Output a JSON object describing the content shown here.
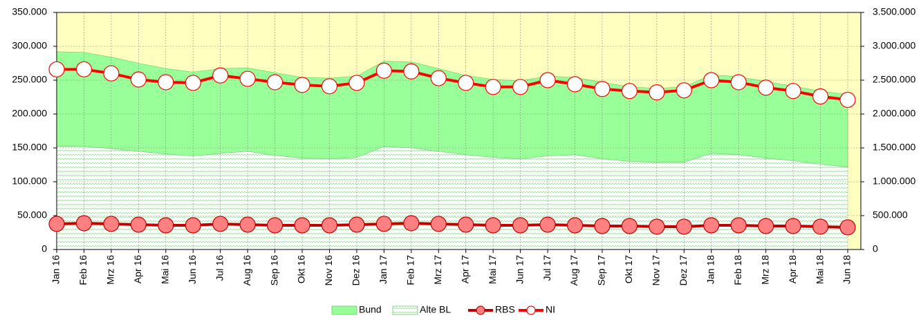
{
  "chart_data": {
    "type": "combo",
    "categories": [
      "Jan 16",
      "Feb 16",
      "Mrz 16",
      "Apr 16",
      "Mai 16",
      "Jun 16",
      "Jul 16",
      "Aug 16",
      "Sep 16",
      "Okt 16",
      "Nov 16",
      "Dez 16",
      "Jan 17",
      "Feb 17",
      "Mrz 17",
      "Apr 17",
      "Mai 17",
      "Jun 17",
      "Jul 17",
      "Aug 17",
      "Sep 17",
      "Okt 17",
      "Nov 17",
      "Dez 17",
      "Jan 18",
      "Feb 18",
      "Mrz 18",
      "Apr 18",
      "Mai 18",
      "Jun 18"
    ],
    "series": [
      {
        "name": "Bund",
        "type": "area",
        "color": "#99ff99",
        "values": [
          139000,
          139000,
          135000,
          130000,
          126000,
          124000,
          125000,
          123000,
          122000,
          119000,
          119000,
          120000,
          126000,
          127000,
          122000,
          117000,
          115000,
          115000,
          118000,
          114000,
          113000,
          110000,
          109000,
          111000,
          116000,
          115000,
          113000,
          110000,
          108000,
          107000
        ]
      },
      {
        "name": "Alte BL",
        "type": "area",
        "color": "#ccffcc",
        "values": [
          153000,
          152000,
          149000,
          145000,
          141000,
          138000,
          142000,
          145000,
          139000,
          135000,
          134000,
          136000,
          152000,
          150000,
          145000,
          140000,
          136000,
          134000,
          138000,
          140000,
          134000,
          130000,
          129000,
          129000,
          142000,
          140000,
          135000,
          131000,
          126000,
          122000
        ]
      },
      {
        "name": "RBS",
        "type": "line",
        "axis": "y2",
        "color": "#c00000",
        "marker_color": "#ff8080",
        "values": [
          378000,
          388000,
          378000,
          367000,
          357000,
          357000,
          378000,
          367000,
          357000,
          357000,
          357000,
          367000,
          378000,
          388000,
          378000,
          367000,
          357000,
          357000,
          367000,
          357000,
          347000,
          347000,
          337000,
          337000,
          357000,
          357000,
          347000,
          347000,
          337000,
          327000
        ]
      },
      {
        "name": "NI",
        "type": "line",
        "axis": "y2",
        "color": "#ff0000",
        "marker_color": "#ffffff",
        "values": [
          2660000,
          2660000,
          2600000,
          2510000,
          2470000,
          2460000,
          2570000,
          2520000,
          2470000,
          2430000,
          2410000,
          2460000,
          2640000,
          2630000,
          2530000,
          2460000,
          2400000,
          2400000,
          2500000,
          2440000,
          2370000,
          2340000,
          2320000,
          2350000,
          2500000,
          2470000,
          2390000,
          2340000,
          2260000,
          2210000
        ]
      }
    ],
    "ylim": [
      0,
      350000
    ],
    "yticks": [
      0,
      {
        "value": 50000,
        "label": "50.000"
      },
      {
        "value": 100000,
        "label": "100.000"
      },
      {
        "value": 150000,
        "label": "150.000"
      },
      {
        "value": 200000,
        "label": "200.000"
      },
      {
        "value": 250000,
        "label": "250.000"
      },
      {
        "value": 300000,
        "label": "300.000"
      },
      {
        "value": 350000,
        "label": "350.000"
      }
    ],
    "y2lim": [
      0,
      3500000
    ],
    "y2ticks": [
      0,
      {
        "value": 500000,
        "label": "500.000"
      },
      {
        "value": 1000000,
        "label": "1.000.000"
      },
      {
        "value": 1500000,
        "label": "1.500.000"
      },
      {
        "value": 2000000,
        "label": "2.000.000"
      },
      {
        "value": 2500000,
        "label": "2.500.000"
      },
      {
        "value": 3000000,
        "label": "3.000.000"
      },
      {
        "value": 3500000,
        "label": "3.500.000"
      }
    ],
    "grid": true,
    "stacked": true,
    "plot_background": "#ffffc0",
    "legend": "bottom"
  }
}
